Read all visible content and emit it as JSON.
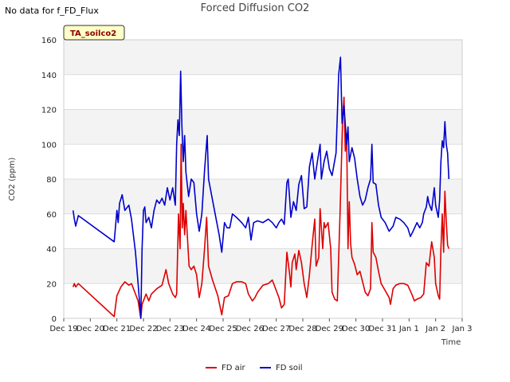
{
  "status_text": "No data for f_FD_Flux",
  "chart_data": {
    "type": "line",
    "title": "Forced Diffusion CO2",
    "xlabel": "Time",
    "ylabel": "CO2 (ppm)",
    "ylim": [
      0,
      160
    ],
    "yticks": [
      0,
      20,
      40,
      60,
      80,
      100,
      120,
      140,
      160
    ],
    "xlim": [
      0,
      15
    ],
    "xtick_labels": [
      "Dec 19",
      "Dec 20",
      "Dec 21",
      "Dec 22",
      "Dec 23",
      "Dec 24",
      "Dec 25",
      "Dec 26",
      "Dec 27",
      "Dec 28",
      "Dec 29",
      "Dec 30",
      "Dec 31",
      "Jan 1",
      "Jan 2",
      "Jan 3"
    ],
    "annotation": "TA_soilco2",
    "grid": true,
    "legend_position": "bottom-center",
    "series": [
      {
        "name": "FD air",
        "color": "#dd0000",
        "points": [
          [
            0.35,
            18
          ],
          [
            0.4,
            20
          ],
          [
            0.45,
            18
          ],
          [
            0.55,
            20
          ],
          [
            1.9,
            1
          ],
          [
            2.0,
            13
          ],
          [
            2.15,
            18
          ],
          [
            2.3,
            21
          ],
          [
            2.45,
            19
          ],
          [
            2.55,
            20
          ],
          [
            2.7,
            14
          ],
          [
            2.8,
            10
          ],
          [
            2.9,
            0
          ],
          [
            2.95,
            8
          ],
          [
            3.1,
            14
          ],
          [
            3.2,
            10
          ],
          [
            3.3,
            14
          ],
          [
            3.5,
            17
          ],
          [
            3.7,
            19
          ],
          [
            3.85,
            28
          ],
          [
            3.95,
            20
          ],
          [
            4.1,
            14
          ],
          [
            4.2,
            12
          ],
          [
            4.25,
            14
          ],
          [
            4.32,
            60
          ],
          [
            4.38,
            40
          ],
          [
            4.42,
            100
          ],
          [
            4.46,
            52
          ],
          [
            4.5,
            66
          ],
          [
            4.55,
            48
          ],
          [
            4.6,
            62
          ],
          [
            4.68,
            40
          ],
          [
            4.72,
            30
          ],
          [
            4.8,
            28
          ],
          [
            4.9,
            30
          ],
          [
            5.0,
            25
          ],
          [
            5.1,
            12
          ],
          [
            5.2,
            20
          ],
          [
            5.3,
            40
          ],
          [
            5.38,
            58
          ],
          [
            5.45,
            30
          ],
          [
            5.6,
            22
          ],
          [
            5.8,
            13
          ],
          [
            5.95,
            2
          ],
          [
            6.05,
            12
          ],
          [
            6.2,
            13
          ],
          [
            6.35,
            20
          ],
          [
            6.5,
            21
          ],
          [
            6.7,
            21
          ],
          [
            6.85,
            20
          ],
          [
            6.95,
            14
          ],
          [
            7.1,
            10
          ],
          [
            7.2,
            12
          ],
          [
            7.3,
            15
          ],
          [
            7.5,
            19
          ],
          [
            7.7,
            20
          ],
          [
            7.85,
            22
          ],
          [
            7.95,
            18
          ],
          [
            8.1,
            12
          ],
          [
            8.2,
            6
          ],
          [
            8.3,
            8
          ],
          [
            8.4,
            38
          ],
          [
            8.5,
            26
          ],
          [
            8.55,
            18
          ],
          [
            8.6,
            32
          ],
          [
            8.7,
            37
          ],
          [
            8.75,
            28
          ],
          [
            8.85,
            39
          ],
          [
            8.95,
            32
          ],
          [
            9.05,
            20
          ],
          [
            9.15,
            12
          ],
          [
            9.25,
            25
          ],
          [
            9.35,
            42
          ],
          [
            9.45,
            57
          ],
          [
            9.5,
            30
          ],
          [
            9.6,
            35
          ],
          [
            9.65,
            63
          ],
          [
            9.75,
            40
          ],
          [
            9.8,
            55
          ],
          [
            9.85,
            52
          ],
          [
            9.95,
            55
          ],
          [
            10.05,
            40
          ],
          [
            10.1,
            15
          ],
          [
            10.2,
            11
          ],
          [
            10.3,
            10
          ],
          [
            10.4,
            60
          ],
          [
            10.5,
            115
          ],
          [
            10.55,
            127
          ],
          [
            10.6,
            96
          ],
          [
            10.65,
            106
          ],
          [
            10.7,
            40
          ],
          [
            10.75,
            67
          ],
          [
            10.8,
            43
          ],
          [
            10.85,
            35
          ],
          [
            10.95,
            31
          ],
          [
            11.05,
            25
          ],
          [
            11.15,
            27
          ],
          [
            11.25,
            21
          ],
          [
            11.35,
            15
          ],
          [
            11.45,
            13
          ],
          [
            11.55,
            17
          ],
          [
            11.6,
            55
          ],
          [
            11.65,
            38
          ],
          [
            11.75,
            35
          ],
          [
            11.85,
            27
          ],
          [
            11.95,
            20
          ],
          [
            12.1,
            16
          ],
          [
            12.25,
            12
          ],
          [
            12.3,
            8
          ],
          [
            12.4,
            17
          ],
          [
            12.5,
            19
          ],
          [
            12.65,
            20
          ],
          [
            12.8,
            20
          ],
          [
            12.95,
            19
          ],
          [
            13.1,
            14
          ],
          [
            13.2,
            10
          ],
          [
            13.3,
            11
          ],
          [
            13.45,
            12
          ],
          [
            13.55,
            14
          ],
          [
            13.65,
            32
          ],
          [
            13.75,
            30
          ],
          [
            13.85,
            44
          ],
          [
            13.95,
            35
          ],
          [
            14.0,
            20
          ],
          [
            14.1,
            13
          ],
          [
            14.15,
            11
          ],
          [
            14.2,
            40
          ],
          [
            14.25,
            60
          ],
          [
            14.3,
            38
          ],
          [
            14.35,
            73
          ],
          [
            14.4,
            56
          ],
          [
            14.45,
            42
          ],
          [
            14.5,
            40
          ]
        ]
      },
      {
        "name": "FD soil",
        "color": "#0000cc",
        "points": [
          [
            0.35,
            62
          ],
          [
            0.4,
            57
          ],
          [
            0.45,
            53
          ],
          [
            0.55,
            59
          ],
          [
            1.9,
            44
          ],
          [
            2.0,
            62
          ],
          [
            2.05,
            55
          ],
          [
            2.1,
            66
          ],
          [
            2.2,
            71
          ],
          [
            2.3,
            62
          ],
          [
            2.45,
            65
          ],
          [
            2.55,
            57
          ],
          [
            2.7,
            38
          ],
          [
            2.8,
            20
          ],
          [
            2.9,
            0
          ],
          [
            2.95,
            40
          ],
          [
            3.0,
            62
          ],
          [
            3.05,
            64
          ],
          [
            3.1,
            55
          ],
          [
            3.2,
            58
          ],
          [
            3.3,
            52
          ],
          [
            3.4,
            62
          ],
          [
            3.5,
            68
          ],
          [
            3.6,
            66
          ],
          [
            3.7,
            69
          ],
          [
            3.8,
            65
          ],
          [
            3.9,
            75
          ],
          [
            4.0,
            68
          ],
          [
            4.1,
            75
          ],
          [
            4.2,
            65
          ],
          [
            4.25,
            100
          ],
          [
            4.3,
            114
          ],
          [
            4.35,
            105
          ],
          [
            4.4,
            142
          ],
          [
            4.45,
            110
          ],
          [
            4.5,
            90
          ],
          [
            4.55,
            105
          ],
          [
            4.6,
            84
          ],
          [
            4.7,
            70
          ],
          [
            4.8,
            80
          ],
          [
            4.9,
            78
          ],
          [
            5.0,
            60
          ],
          [
            5.1,
            50
          ],
          [
            5.2,
            60
          ],
          [
            5.3,
            85
          ],
          [
            5.4,
            105
          ],
          [
            5.45,
            80
          ],
          [
            5.7,
            60
          ],
          [
            5.85,
            48
          ],
          [
            5.95,
            38
          ],
          [
            6.05,
            55
          ],
          [
            6.15,
            52
          ],
          [
            6.25,
            52
          ],
          [
            6.35,
            60
          ],
          [
            6.5,
            58
          ],
          [
            6.7,
            55
          ],
          [
            6.85,
            52
          ],
          [
            6.95,
            58
          ],
          [
            7.05,
            45
          ],
          [
            7.15,
            55
          ],
          [
            7.3,
            56
          ],
          [
            7.5,
            55
          ],
          [
            7.7,
            57
          ],
          [
            7.85,
            55
          ],
          [
            8.0,
            52
          ],
          [
            8.1,
            55
          ],
          [
            8.2,
            57
          ],
          [
            8.3,
            54
          ],
          [
            8.4,
            78
          ],
          [
            8.45,
            80
          ],
          [
            8.5,
            70
          ],
          [
            8.55,
            58
          ],
          [
            8.65,
            67
          ],
          [
            8.75,
            62
          ],
          [
            8.85,
            77
          ],
          [
            8.95,
            82
          ],
          [
            9.05,
            63
          ],
          [
            9.15,
            64
          ],
          [
            9.25,
            87
          ],
          [
            9.35,
            95
          ],
          [
            9.45,
            80
          ],
          [
            9.55,
            90
          ],
          [
            9.65,
            100
          ],
          [
            9.7,
            80
          ],
          [
            9.8,
            90
          ],
          [
            9.9,
            96
          ],
          [
            10.0,
            86
          ],
          [
            10.1,
            82
          ],
          [
            10.25,
            95
          ],
          [
            10.35,
            140
          ],
          [
            10.42,
            150
          ],
          [
            10.48,
            112
          ],
          [
            10.55,
            122
          ],
          [
            10.65,
            100
          ],
          [
            10.7,
            110
          ],
          [
            10.75,
            90
          ],
          [
            10.85,
            98
          ],
          [
            10.95,
            92
          ],
          [
            11.05,
            80
          ],
          [
            11.15,
            70
          ],
          [
            11.25,
            65
          ],
          [
            11.35,
            68
          ],
          [
            11.45,
            75
          ],
          [
            11.55,
            80
          ],
          [
            11.6,
            100
          ],
          [
            11.65,
            78
          ],
          [
            11.75,
            77
          ],
          [
            11.85,
            65
          ],
          [
            11.95,
            58
          ],
          [
            12.1,
            55
          ],
          [
            12.25,
            50
          ],
          [
            12.4,
            53
          ],
          [
            12.5,
            58
          ],
          [
            12.65,
            57
          ],
          [
            12.8,
            55
          ],
          [
            12.95,
            52
          ],
          [
            13.05,
            47
          ],
          [
            13.15,
            50
          ],
          [
            13.3,
            55
          ],
          [
            13.4,
            52
          ],
          [
            13.5,
            55
          ],
          [
            13.55,
            60
          ],
          [
            13.65,
            64
          ],
          [
            13.7,
            70
          ],
          [
            13.75,
            66
          ],
          [
            13.85,
            62
          ],
          [
            13.95,
            75
          ],
          [
            14.0,
            65
          ],
          [
            14.1,
            58
          ],
          [
            14.15,
            68
          ],
          [
            14.2,
            90
          ],
          [
            14.25,
            102
          ],
          [
            14.3,
            98
          ],
          [
            14.35,
            113
          ],
          [
            14.4,
            100
          ],
          [
            14.45,
            95
          ],
          [
            14.5,
            80
          ]
        ]
      }
    ]
  }
}
